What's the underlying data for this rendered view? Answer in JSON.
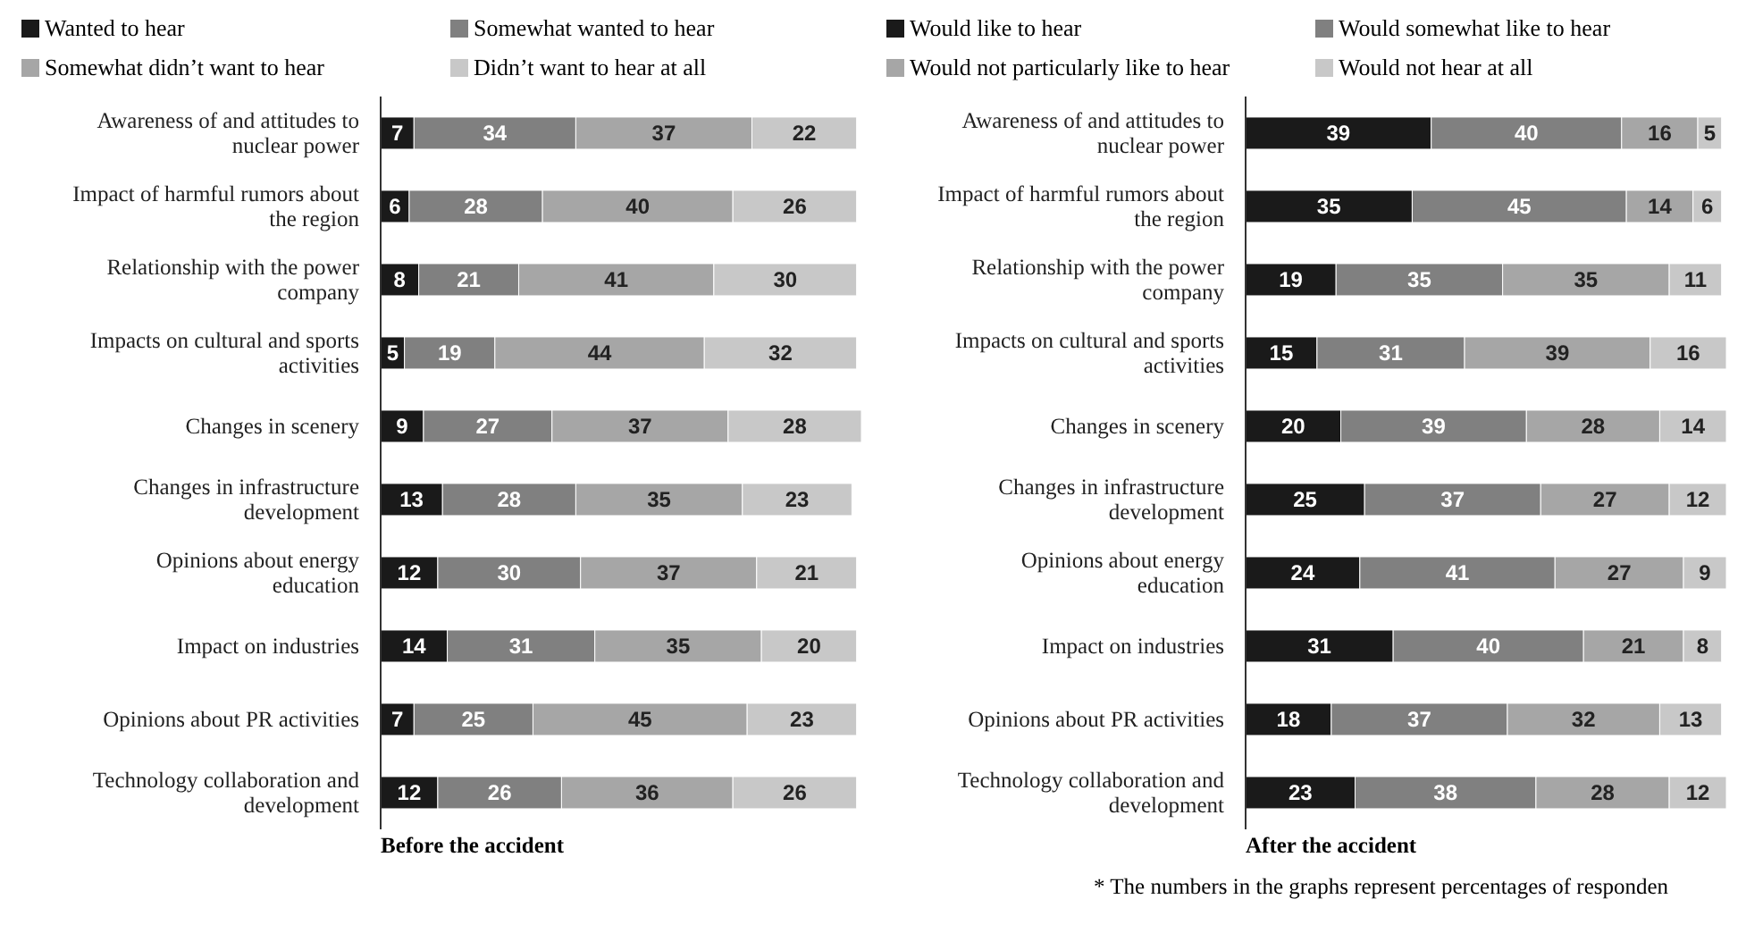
{
  "chart_data": [
    {
      "type": "bar",
      "orientation": "horizontal",
      "stacked": true,
      "xlabel": "Before the accident",
      "legend": "top",
      "data_labels": true,
      "tick_labels": "y",
      "xlim": [
        0,
        101
      ],
      "categories": [
        "Awareness of and attitudes to nuclear power",
        "Impact of harmful rumors about the region",
        "Relationship with the power company",
        "Impacts on cultural and sports activities",
        "Changes in scenery",
        "Changes in infrastructure development",
        "Opinions about energy education",
        "Impact on industries",
        "Opinions about PR activities",
        "Technology collaboration and development"
      ],
      "series": [
        {
          "name": "Wanted to hear",
          "color": "#1a1a1a",
          "values": [
            7,
            6,
            8,
            5,
            9,
            13,
            12,
            14,
            7,
            12
          ]
        },
        {
          "name": "Somewhat wanted to hear",
          "color": "#808080",
          "values": [
            34,
            28,
            21,
            19,
            27,
            28,
            30,
            31,
            25,
            26
          ]
        },
        {
          "name": "Somewhat didn’t want to hear",
          "color": "#a6a6a6",
          "values": [
            37,
            40,
            41,
            44,
            37,
            35,
            37,
            35,
            45,
            36
          ]
        },
        {
          "name": "Didn’t want to hear at all",
          "color": "#c8c8c8",
          "values": [
            22,
            26,
            30,
            32,
            28,
            23,
            21,
            20,
            23,
            26
          ]
        }
      ]
    },
    {
      "type": "bar",
      "orientation": "horizontal",
      "stacked": true,
      "xlabel": "After the accident",
      "legend": "top",
      "data_labels": true,
      "tick_labels": "y",
      "xlim": [
        0,
        101
      ],
      "annotations": [
        "* The numbers in the graphs represent percentages of responden"
      ],
      "categories": [
        "Awareness of and attitudes to nuclear power",
        "Impact of harmful rumors about the region",
        "Relationship with the power company",
        "Impacts on cultural and sports activities",
        "Changes in scenery",
        "Changes in infrastructure development",
        "Opinions about energy education",
        "Impact on industries",
        "Opinions about PR activities",
        "Technology collaboration and development"
      ],
      "series": [
        {
          "name": "Would like to hear",
          "color": "#1a1a1a",
          "values": [
            39,
            35,
            19,
            15,
            20,
            25,
            24,
            31,
            18,
            23
          ]
        },
        {
          "name": "Would somewhat like to hear",
          "color": "#808080",
          "values": [
            40,
            45,
            35,
            31,
            39,
            37,
            41,
            40,
            37,
            38
          ]
        },
        {
          "name": "Would not particularly like to hear",
          "color": "#a6a6a6",
          "values": [
            16,
            14,
            35,
            39,
            28,
            27,
            27,
            21,
            32,
            28
          ]
        },
        {
          "name": "Would not hear at all",
          "color": "#c8c8c8",
          "values": [
            5,
            6,
            11,
            16,
            14,
            12,
            9,
            8,
            13,
            12
          ]
        }
      ]
    }
  ]
}
